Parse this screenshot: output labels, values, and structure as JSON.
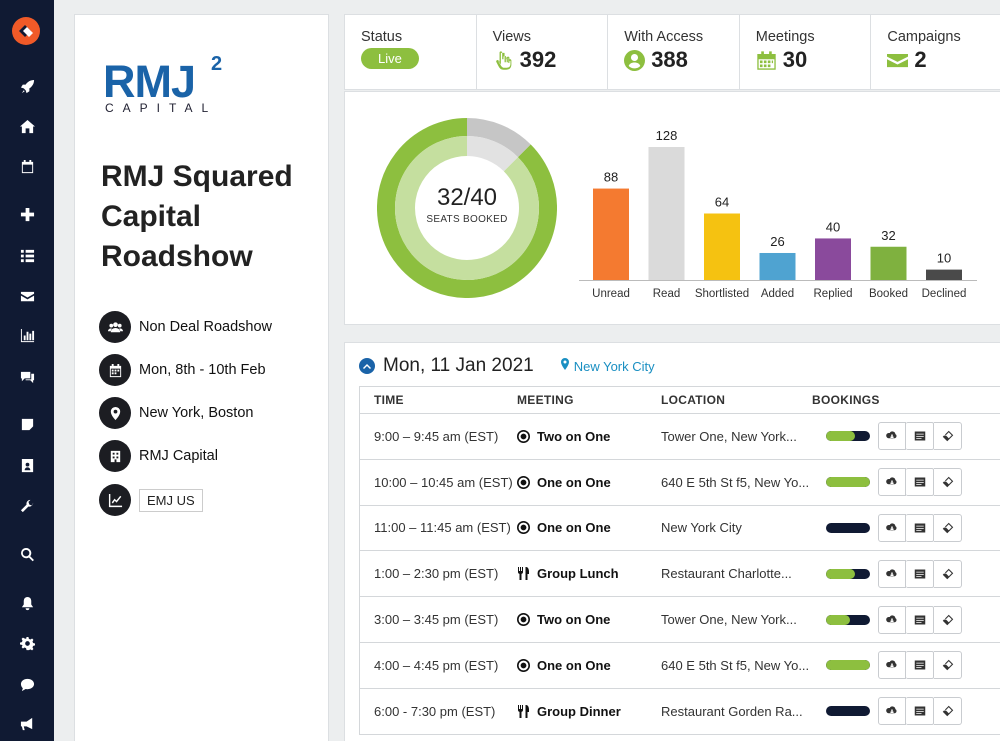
{
  "brand": {
    "logo_main": "RMJ",
    "logo_sup": "2",
    "logo_sub": "CAPITAL",
    "accent": "#1a63a8",
    "green": "#8dbf3f"
  },
  "sidebar": {
    "icons": [
      "rocket-icon",
      "home-icon",
      "calendar-icon",
      "plus-icon",
      "list-icon",
      "mail-icon",
      "bar-chart-icon",
      "comments-icon",
      "note-icon",
      "contact-icon",
      "wrench-icon",
      "search-icon",
      "bell-icon",
      "gear-icon",
      "chat-icon",
      "megaphone-icon"
    ]
  },
  "event": {
    "title": "RMJ Squared Capital Roadshow",
    "type": "Non Deal Roadshow",
    "dates": "Mon, 8th - 10th Feb",
    "locations": "New York, Boston",
    "company": "RMJ Capital",
    "ticker": "EMJ US"
  },
  "stats": {
    "status_label": "Status",
    "status_value": "Live",
    "views_label": "Views",
    "views_value": "392",
    "access_label": "With Access",
    "access_value": "388",
    "meetings_label": "Meetings",
    "meetings_value": "30",
    "campaigns_label": "Campaigns",
    "campaigns_value": "2"
  },
  "donut": {
    "booked": 32,
    "total": 40,
    "label_main": "32/40",
    "label_sub": "SEATS BOOKED"
  },
  "chart_data": {
    "type": "bar",
    "title": "",
    "categories": [
      "Unread",
      "Read",
      "Shortlisted",
      "Added",
      "Replied",
      "Booked",
      "Declined"
    ],
    "values": [
      88,
      128,
      64,
      26,
      40,
      32,
      10
    ],
    "colors": [
      "#f47a30",
      "#dadada",
      "#f5c211",
      "#4fa3d1",
      "#8a4a9c",
      "#7fb13f",
      "#4a4a4a"
    ],
    "ylim": [
      0,
      128
    ]
  },
  "schedule": {
    "date": "Mon, 11 Jan 2021",
    "city": "New York City",
    "headers": {
      "time": "TIME",
      "meeting": "MEETING",
      "location": "LOCATION",
      "bookings": "BOOKINGS"
    },
    "rows": [
      {
        "time": "9:00 – 9:45 am (EST)",
        "meeting": "Two on One",
        "meeting_icon": "target-icon",
        "location": "Tower One, New York...",
        "booking": 0.65
      },
      {
        "time": "10:00 – 10:45 am (EST)",
        "meeting": "One on One",
        "meeting_icon": "target-icon",
        "location": "640 E 5th St f5, New Yo...",
        "booking": 1.0
      },
      {
        "time": "11:00 – 11:45 am (EST)",
        "meeting": "One on One",
        "meeting_icon": "target-icon",
        "location": "New York City",
        "booking": 0.0
      },
      {
        "time": "1:00 – 2:30 pm (EST)",
        "meeting": "Group Lunch",
        "meeting_icon": "cutlery-icon",
        "location": "Restaurant Charlotte...",
        "booking": 0.65
      },
      {
        "time": "3:00 – 3:45 pm (EST)",
        "meeting": "Two on One",
        "meeting_icon": "target-icon",
        "location": "Tower One, New York...",
        "booking": 0.55
      },
      {
        "time": "4:00 – 4:45 pm (EST)",
        "meeting": "One on One",
        "meeting_icon": "target-icon",
        "location": "640 E 5th St f5, New Yo...",
        "booking": 1.0
      },
      {
        "time": "6:00 - 7:30 pm (EST)",
        "meeting": "Group Dinner",
        "meeting_icon": "cutlery-icon",
        "location": "Restaurant Gorden Ra...",
        "booking": 0.0
      }
    ]
  }
}
